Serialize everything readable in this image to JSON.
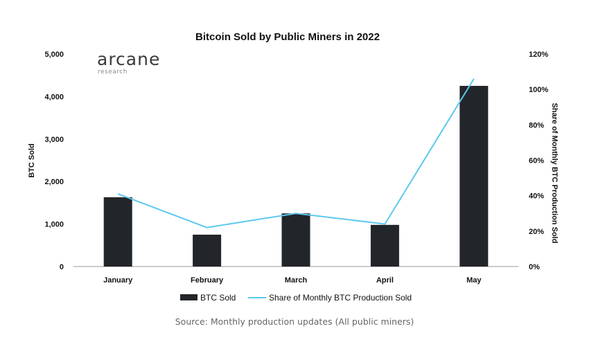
{
  "chart_data": {
    "type": "bar",
    "title": "Bitcoin Sold by Public Miners in 2022",
    "categories": [
      "January",
      "February",
      "March",
      "April",
      "May"
    ],
    "series": [
      {
        "name": "BTC Sold",
        "type": "bar",
        "axis": "left",
        "values": [
          1630,
          750,
          1250,
          980,
          4250
        ]
      },
      {
        "name": "Share of Monthly BTC Production Sold",
        "type": "line",
        "axis": "right",
        "values": [
          41,
          22,
          30,
          24,
          106
        ]
      }
    ],
    "ylabel": "BTC Sold",
    "y2label": "Share of Monthly BTC Production Sold",
    "ylim": [
      0,
      5000
    ],
    "y2lim": [
      0,
      120
    ],
    "yticks": [
      0,
      1000,
      2000,
      3000,
      4000,
      5000
    ],
    "y2ticks": [
      0,
      20,
      40,
      60,
      80,
      100,
      120
    ],
    "ytick_labels": [
      "0",
      "1,000",
      "2,000",
      "3,000",
      "4,000",
      "5,000"
    ],
    "y2tick_labels": [
      "0%",
      "20%",
      "40%",
      "60%",
      "80%",
      "100%",
      "120%"
    ],
    "legend_position": "bottom",
    "grid": false
  },
  "colors": {
    "bar": "#222529",
    "line": "#5bc8ee",
    "axis": "#999999"
  },
  "logo": {
    "name": "arcane",
    "sub": "research"
  },
  "source": "Source: Monthly production updates (All public miners)"
}
